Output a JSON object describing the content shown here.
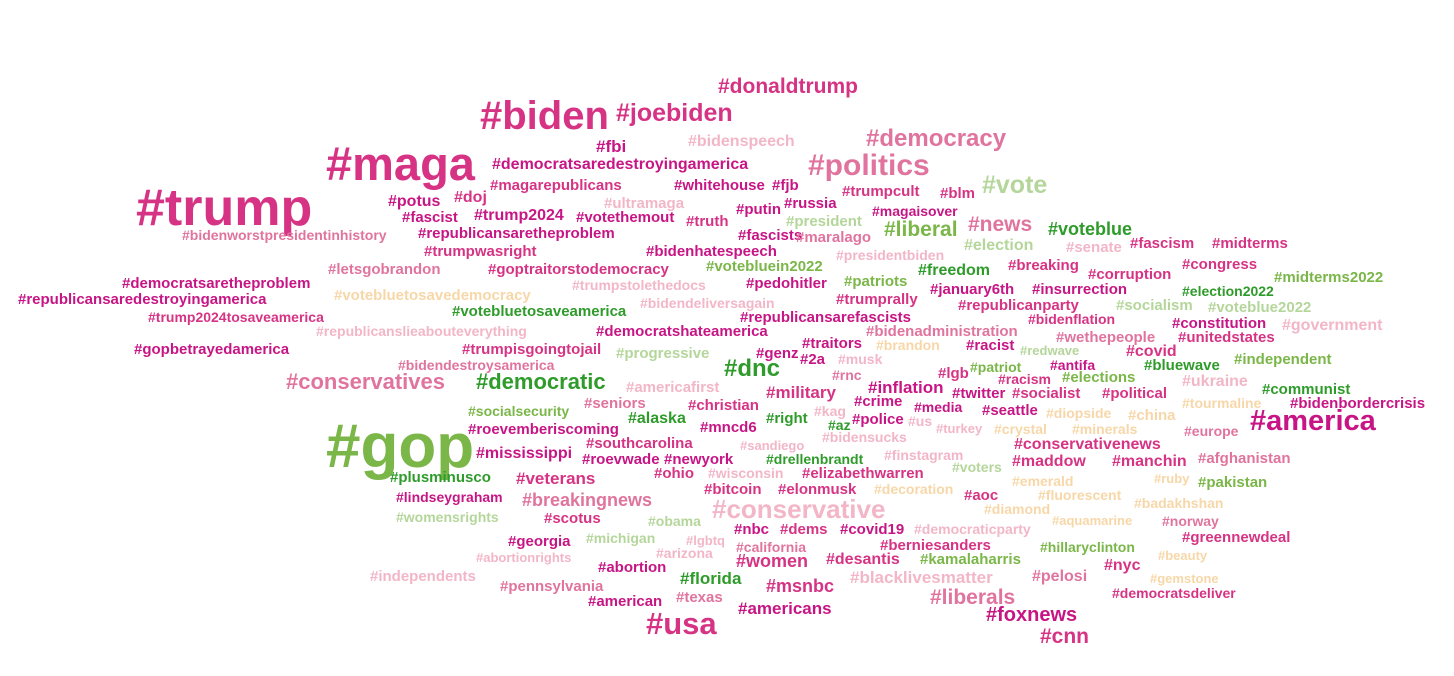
{
  "palette": {
    "dark_magenta": "#c71585",
    "magenta": "#d63384",
    "pink": "#e0749e",
    "light_pink": "#f2b6c8",
    "dark_green": "#2e9b2a",
    "green": "#7ab648",
    "light_green": "#b5d69b",
    "peach": "#f7d7a8"
  },
  "words": [
    {
      "text": "#donaldtrump",
      "color": "magenta"
    },
    {
      "text": "#biden",
      "color": "magenta"
    },
    {
      "text": "#joebiden",
      "color": "magenta"
    },
    {
      "text": "#bidenspeech",
      "color": "light_pink"
    },
    {
      "text": "#democracy",
      "color": "pink"
    },
    {
      "text": "#maga",
      "color": "magenta"
    },
    {
      "text": "#fbi",
      "color": "dark_magenta"
    },
    {
      "text": "#democratsaredestroyingamerica",
      "color": "dark_magenta"
    },
    {
      "text": "#politics",
      "color": "pink"
    },
    {
      "text": "#trump",
      "color": "magenta"
    },
    {
      "text": "#magarepublicans",
      "color": "magenta"
    },
    {
      "text": "#whitehouse",
      "color": "dark_magenta"
    },
    {
      "text": "#fjb",
      "color": "dark_magenta"
    },
    {
      "text": "#trumpcult",
      "color": "magenta"
    },
    {
      "text": "#blm",
      "color": "magenta"
    },
    {
      "text": "#vote",
      "color": "light_green"
    },
    {
      "text": "#potus",
      "color": "dark_magenta"
    },
    {
      "text": "#doj",
      "color": "magenta"
    },
    {
      "text": "#ultramaga",
      "color": "light_pink"
    },
    {
      "text": "#russia",
      "color": "dark_magenta"
    },
    {
      "text": "#fascist",
      "color": "dark_magenta"
    },
    {
      "text": "#trump2024",
      "color": "dark_magenta"
    },
    {
      "text": "#votethemout",
      "color": "dark_magenta"
    },
    {
      "text": "#putin",
      "color": "dark_magenta"
    },
    {
      "text": "#magaisover",
      "color": "dark_magenta"
    },
    {
      "text": "#truth",
      "color": "magenta"
    },
    {
      "text": "#president",
      "color": "light_green"
    },
    {
      "text": "#news",
      "color": "pink"
    },
    {
      "text": "#voteblue",
      "color": "dark_green"
    },
    {
      "text": "#bidenworstpresidentinhistory",
      "color": "pink"
    },
    {
      "text": "#republicansaretheproblem",
      "color": "dark_magenta"
    },
    {
      "text": "#fascists",
      "color": "dark_magenta"
    },
    {
      "text": "#maralago",
      "color": "pink"
    },
    {
      "text": "#liberal",
      "color": "green"
    },
    {
      "text": "#election",
      "color": "light_green"
    },
    {
      "text": "#senate",
      "color": "light_pink"
    },
    {
      "text": "#fascism",
      "color": "magenta"
    },
    {
      "text": "#midterms",
      "color": "magenta"
    },
    {
      "text": "#trumpwasright",
      "color": "magenta"
    },
    {
      "text": "#bidenhatespeech",
      "color": "dark_magenta"
    },
    {
      "text": "#presidentbiden",
      "color": "light_pink"
    },
    {
      "text": "#letsgobrandon",
      "color": "pink"
    },
    {
      "text": "#goptraitorstodemocracy",
      "color": "magenta"
    },
    {
      "text": "#votebluein2022",
      "color": "green"
    },
    {
      "text": "#freedom",
      "color": "dark_green"
    },
    {
      "text": "#breaking",
      "color": "magenta"
    },
    {
      "text": "#corruption",
      "color": "magenta"
    },
    {
      "text": "#congress",
      "color": "magenta"
    },
    {
      "text": "#midterms2022",
      "color": "green"
    },
    {
      "text": "#democratsaretheproblem",
      "color": "dark_magenta"
    },
    {
      "text": "#trumpstolethedocs",
      "color": "light_pink"
    },
    {
      "text": "#pedohitler",
      "color": "dark_magenta"
    },
    {
      "text": "#patriots",
      "color": "green"
    },
    {
      "text": "#january6th",
      "color": "dark_magenta"
    },
    {
      "text": "#insurrection",
      "color": "dark_magenta"
    },
    {
      "text": "#republicansaredestroyingamerica",
      "color": "dark_magenta"
    },
    {
      "text": "#votebluetosavedemocracy",
      "color": "peach"
    },
    {
      "text": "#bidendeliversagain",
      "color": "light_pink"
    },
    {
      "text": "#trumprally",
      "color": "magenta"
    },
    {
      "text": "#republicanparty",
      "color": "magenta"
    },
    {
      "text": "#socialism",
      "color": "light_green"
    },
    {
      "text": "#voteblue2022",
      "color": "light_green"
    },
    {
      "text": "#trump2024tosaveamerica",
      "color": "magenta"
    },
    {
      "text": "#votebluetosaveamerica",
      "color": "dark_green"
    },
    {
      "text": "#republicansarefascists",
      "color": "dark_magenta"
    },
    {
      "text": "#bidenflation",
      "color": "magenta"
    },
    {
      "text": "#constitution",
      "color": "dark_magenta"
    },
    {
      "text": "#government",
      "color": "light_pink"
    },
    {
      "text": "#republicanslieabouteverything",
      "color": "light_pink"
    },
    {
      "text": "#democratshateamerica",
      "color": "dark_magenta"
    },
    {
      "text": "#bidenadministration",
      "color": "pink"
    },
    {
      "text": "#wethepeople",
      "color": "pink"
    },
    {
      "text": "#unitedstates",
      "color": "magenta"
    },
    {
      "text": "#gopbetrayedamerica",
      "color": "dark_magenta"
    },
    {
      "text": "#trumpisgoingtojail",
      "color": "magenta"
    },
    {
      "text": "#progressive",
      "color": "light_green"
    },
    {
      "text": "#genz",
      "color": "dark_magenta"
    },
    {
      "text": "#traitors",
      "color": "dark_magenta"
    },
    {
      "text": "#brandon",
      "color": "peach"
    },
    {
      "text": "#racist",
      "color": "dark_magenta"
    },
    {
      "text": "#redwave",
      "color": "light_green"
    },
    {
      "text": "#covid",
      "color": "magenta"
    },
    {
      "text": "#bidendestroysamerica",
      "color": "pink"
    },
    {
      "text": "#2a",
      "color": "dark_magenta"
    },
    {
      "text": "#musk",
      "color": "light_pink"
    },
    {
      "text": "#patriot",
      "color": "green"
    },
    {
      "text": "#antifa",
      "color": "dark_magenta"
    },
    {
      "text": "#bluewave",
      "color": "dark_green"
    },
    {
      "text": "#independent",
      "color": "green"
    },
    {
      "text": "#dnc",
      "color": "dark_green"
    },
    {
      "text": "#rnc",
      "color": "pink"
    },
    {
      "text": "#lgb",
      "color": "magenta"
    },
    {
      "text": "#conservatives",
      "color": "pink"
    },
    {
      "text": "#democratic",
      "color": "dark_green"
    },
    {
      "text": "#americafirst",
      "color": "light_pink"
    },
    {
      "text": "#racism",
      "color": "magenta"
    },
    {
      "text": "#elections",
      "color": "green"
    },
    {
      "text": "#ukraine",
      "color": "light_pink"
    },
    {
      "text": "#communist",
      "color": "dark_green"
    },
    {
      "text": "#inflation",
      "color": "dark_magenta"
    },
    {
      "text": "#military",
      "color": "magenta"
    },
    {
      "text": "#twitter",
      "color": "dark_magenta"
    },
    {
      "text": "#socialist",
      "color": "magenta"
    },
    {
      "text": "#political",
      "color": "magenta"
    },
    {
      "text": "#seniors",
      "color": "pink"
    },
    {
      "text": "#christian",
      "color": "magenta"
    },
    {
      "text": "#crime",
      "color": "dark_magenta"
    },
    {
      "text": "#media",
      "color": "dark_magenta"
    },
    {
      "text": "#tourmaline",
      "color": "peach"
    },
    {
      "text": "#bidenbordercrisis",
      "color": "dark_magenta"
    },
    {
      "text": "#socialsecurity",
      "color": "green"
    },
    {
      "text": "#alaska",
      "color": "dark_green"
    },
    {
      "text": "#right",
      "color": "dark_green"
    },
    {
      "text": "#kag",
      "color": "light_pink"
    },
    {
      "text": "#seattle",
      "color": "dark_magenta"
    },
    {
      "text": "#diopside",
      "color": "peach"
    },
    {
      "text": "#china",
      "color": "peach"
    },
    {
      "text": "#america",
      "color": "dark_magenta"
    },
    {
      "text": "#roevemberiscoming",
      "color": "dark_magenta"
    },
    {
      "text": "#mncd6",
      "color": "dark_magenta"
    },
    {
      "text": "#az",
      "color": "dark_green"
    },
    {
      "text": "#police",
      "color": "dark_magenta"
    },
    {
      "text": "#us",
      "color": "light_pink"
    },
    {
      "text": "#turkey",
      "color": "light_pink"
    },
    {
      "text": "#crystal",
      "color": "peach"
    },
    {
      "text": "#europe",
      "color": "pink"
    },
    {
      "text": "#gop",
      "color": "green"
    },
    {
      "text": "#southcarolina",
      "color": "magenta"
    },
    {
      "text": "#bidensucks",
      "color": "light_pink"
    },
    {
      "text": "#sandiego",
      "color": "light_pink"
    },
    {
      "text": "#conservativenews",
      "color": "magenta"
    },
    {
      "text": "#mississippi",
      "color": "dark_magenta"
    },
    {
      "text": "#roevwade",
      "color": "dark_magenta"
    },
    {
      "text": "#newyork",
      "color": "dark_magenta"
    },
    {
      "text": "#drellenbrandt",
      "color": "dark_green"
    },
    {
      "text": "#finstagram",
      "color": "light_pink"
    },
    {
      "text": "#maddow",
      "color": "magenta"
    },
    {
      "text": "#manchin",
      "color": "magenta"
    },
    {
      "text": "#afghanistan",
      "color": "pink"
    },
    {
      "text": "#ohio",
      "color": "magenta"
    },
    {
      "text": "#wisconsin",
      "color": "light_pink"
    },
    {
      "text": "#elizabethwarren",
      "color": "magenta"
    },
    {
      "text": "#voters",
      "color": "light_green"
    },
    {
      "text": "#plusminusco",
      "color": "dark_green"
    },
    {
      "text": "#veterans",
      "color": "magenta"
    },
    {
      "text": "#emerald",
      "color": "peach"
    },
    {
      "text": "#pakistan",
      "color": "green"
    },
    {
      "text": "#bitcoin",
      "color": "magenta"
    },
    {
      "text": "#elonmusk",
      "color": "magenta"
    },
    {
      "text": "#decoration",
      "color": "peach"
    },
    {
      "text": "#aoc",
      "color": "magenta"
    },
    {
      "text": "#fluorescent",
      "color": "peach"
    },
    {
      "text": "#lindseygraham",
      "color": "dark_magenta"
    },
    {
      "text": "#breakingnews",
      "color": "pink"
    },
    {
      "text": "#badakhshan",
      "color": "peach"
    },
    {
      "text": "#diamond",
      "color": "peach"
    },
    {
      "text": "#conservative",
      "color": "light_pink"
    },
    {
      "text": "#womensrights",
      "color": "light_green"
    },
    {
      "text": "#scotus",
      "color": "magenta"
    },
    {
      "text": "#obama",
      "color": "light_green"
    },
    {
      "text": "#aquamarine",
      "color": "peach"
    },
    {
      "text": "#norway",
      "color": "pink"
    },
    {
      "text": "#nbc",
      "color": "dark_magenta"
    },
    {
      "text": "#dems",
      "color": "magenta"
    },
    {
      "text": "#covid19",
      "color": "dark_magenta"
    },
    {
      "text": "#democraticparty",
      "color": "light_pink"
    },
    {
      "text": "#greennewdeal",
      "color": "magenta"
    },
    {
      "text": "#georgia",
      "color": "dark_magenta"
    },
    {
      "text": "#michigan",
      "color": "light_green"
    },
    {
      "text": "#lgbtq",
      "color": "light_pink"
    },
    {
      "text": "#california",
      "color": "pink"
    },
    {
      "text": "#berniesanders",
      "color": "magenta"
    },
    {
      "text": "#hillaryclinton",
      "color": "green"
    },
    {
      "text": "#abortionrights",
      "color": "light_pink"
    },
    {
      "text": "#arizona",
      "color": "light_pink"
    },
    {
      "text": "#beauty",
      "color": "peach"
    },
    {
      "text": "#abortion",
      "color": "dark_magenta"
    },
    {
      "text": "#women",
      "color": "magenta"
    },
    {
      "text": "#desantis",
      "color": "magenta"
    },
    {
      "text": "#kamalaharris",
      "color": "green"
    },
    {
      "text": "#nyc",
      "color": "magenta"
    },
    {
      "text": "#independents",
      "color": "light_pink"
    },
    {
      "text": "#florida",
      "color": "dark_green"
    },
    {
      "text": "#msnbc",
      "color": "magenta"
    },
    {
      "text": "#blacklivesmatter",
      "color": "light_pink"
    },
    {
      "text": "#pelosi",
      "color": "pink"
    },
    {
      "text": "#gemstone",
      "color": "peach"
    },
    {
      "text": "#pennsylvania",
      "color": "pink"
    },
    {
      "text": "#democratsdeliver",
      "color": "magenta"
    },
    {
      "text": "#american",
      "color": "dark_magenta"
    },
    {
      "text": "#texas",
      "color": "pink"
    },
    {
      "text": "#liberals",
      "color": "pink"
    },
    {
      "text": "#ruby",
      "color": "peach"
    },
    {
      "text": "#minerals",
      "color": "peach"
    },
    {
      "text": "#americans",
      "color": "dark_magenta"
    },
    {
      "text": "#foxnews",
      "color": "dark_magenta"
    },
    {
      "text": "#usa",
      "color": "magenta"
    },
    {
      "text": "#cnn",
      "color": "magenta"
    },
    {
      "text": "#election2022",
      "color": "dark_green"
    }
  ]
}
